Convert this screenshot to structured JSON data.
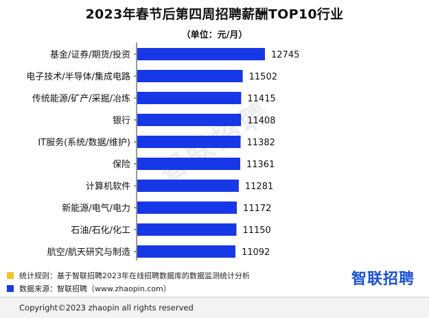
{
  "header": {
    "title": "2023年春节后第四周招聘薪酬TOP10行业",
    "subtitle": "（单位：元/月）"
  },
  "chart_data": {
    "type": "bar",
    "orientation": "horizontal",
    "categories": [
      "基金/证券/期货/投资",
      "电子技术/半导体/集成电路",
      "传统能源/矿产/采掘/冶炼",
      "银行",
      "IT服务(系统/数据/维护)",
      "保险",
      "计算机软件",
      "新能源/电气/电力",
      "石油/石化/化工",
      "航空/航天研究与制造"
    ],
    "values": [
      12745,
      11502,
      11415,
      11408,
      11382,
      11361,
      11281,
      11172,
      11150,
      11092
    ],
    "title": "2023年春节后第四周招聘薪酬TOP10行业",
    "unit": "（单位：元/月）",
    "bar_color": "#1738e6",
    "grid": false,
    "data_labels": true
  },
  "watermark": {
    "text": "智联招聘"
  },
  "notes": [
    {
      "color": "#f2c32d",
      "text": "统计规则：基于智联招聘2023年在线招聘数据库的数据监测统计分析"
    },
    {
      "color": "#1738e6",
      "text": "数据来源：智联招聘（www.zhaopin.com）"
    }
  ],
  "logo": {
    "text": "智联招聘",
    "color": "#1a4fd6"
  },
  "footer": {
    "copyright": "Copyright©2023 zhaopin all rights reserved"
  }
}
